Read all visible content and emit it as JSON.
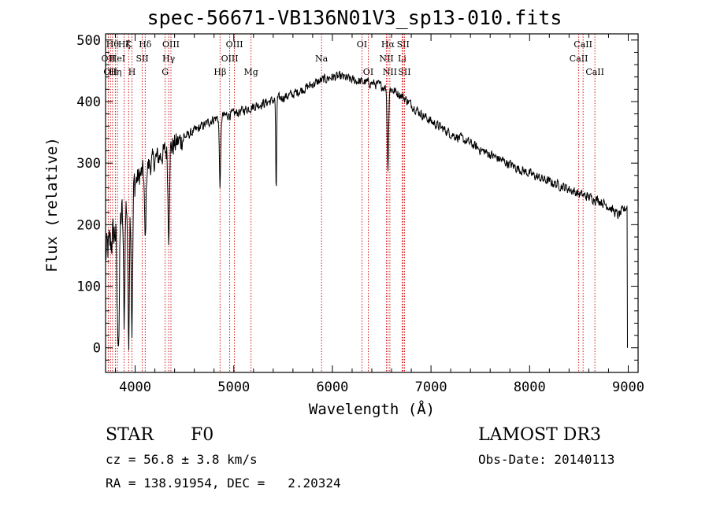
{
  "chart_data": {
    "type": "line",
    "title": "spec-56671-VB136N01V3_sp13-010.fits",
    "xlabel": "Wavelength (Å)",
    "ylabel": "Flux (relative)",
    "xlim": [
      3700,
      9100
    ],
    "ylim": [
      -40,
      510
    ],
    "x_ticks": [
      4000,
      5000,
      6000,
      7000,
      8000,
      9000
    ],
    "y_ticks": [
      0,
      100,
      200,
      300,
      400,
      500
    ],
    "continuum": {
      "x": [
        3700,
        3800,
        3900,
        4000,
        4100,
        4200,
        4300,
        4400,
        4500,
        4600,
        4700,
        4800,
        4900,
        5000,
        5100,
        5200,
        5300,
        5400,
        5500,
        5600,
        5700,
        5800,
        5900,
        6000,
        6100,
        6200,
        6300,
        6400,
        6500,
        6600,
        6700,
        6800,
        6900,
        7000,
        7100,
        7200,
        7300,
        7400,
        7500,
        7600,
        7700,
        7800,
        7900,
        8000,
        8100,
        8200,
        8300,
        8400,
        8500,
        8600,
        8700,
        8800,
        8900,
        8990
      ],
      "y": [
        150,
        190,
        230,
        270,
        290,
        305,
        318,
        330,
        342,
        352,
        362,
        372,
        377,
        380,
        386,
        392,
        397,
        402,
        407,
        412,
        420,
        428,
        435,
        440,
        440,
        435,
        432,
        430,
        425,
        420,
        410,
        395,
        380,
        368,
        358,
        348,
        340,
        332,
        322,
        314,
        306,
        298,
        290,
        283,
        276,
        270,
        264,
        258,
        250,
        245,
        240,
        230,
        215,
        230
      ]
    },
    "absorption_lines": [
      {
        "x": 3820,
        "depth": 140
      },
      {
        "x": 3835,
        "depth": 160
      },
      {
        "x": 3889,
        "depth": 180
      },
      {
        "x": 3934,
        "depth": 230
      },
      {
        "x": 3968,
        "depth": 220
      },
      {
        "x": 4102,
        "depth": 120
      },
      {
        "x": 4340,
        "depth": 140
      },
      {
        "x": 4861,
        "depth": 110
      },
      {
        "x": 5430,
        "depth": 160
      },
      {
        "x": 6563,
        "depth": 130
      }
    ],
    "line_markers": [
      {
        "x": 3727,
        "label": "OII",
        "row": 2
      },
      {
        "x": 3750,
        "label": "OII",
        "row": 3
      },
      {
        "x": 3771,
        "label": "Hθ",
        "row": 1
      },
      {
        "x": 3799,
        "label": "Hη",
        "row": 3
      },
      {
        "x": 3820,
        "label": "HeI",
        "row": 2
      },
      {
        "x": 3889,
        "label": "Hζ",
        "row": 1
      },
      {
        "x": 3934,
        "label": "K",
        "row": 1
      },
      {
        "x": 3968,
        "label": "H",
        "row": 3
      },
      {
        "x": 4072,
        "label": "SII",
        "row": 2
      },
      {
        "x": 4102,
        "label": "Hδ",
        "row": 1
      },
      {
        "x": 4304,
        "label": "G",
        "row": 3
      },
      {
        "x": 4340,
        "label": "Hγ",
        "row": 2
      },
      {
        "x": 4363,
        "label": "OIII",
        "row": 1
      },
      {
        "x": 4861,
        "label": "Hβ",
        "row": 3
      },
      {
        "x": 4959,
        "label": "OIII",
        "row": 2
      },
      {
        "x": 5007,
        "label": "OIII",
        "row": 1
      },
      {
        "x": 5175,
        "label": "Mg",
        "row": 3
      },
      {
        "x": 5890,
        "label": "Na",
        "row": 2
      },
      {
        "x": 6300,
        "label": "OI",
        "row": 1
      },
      {
        "x": 6364,
        "label": "OI",
        "row": 3
      },
      {
        "x": 6548,
        "label": "NII",
        "row": 2
      },
      {
        "x": 6563,
        "label": "Hα",
        "row": 1
      },
      {
        "x": 6583,
        "label": "NII",
        "row": 3
      },
      {
        "x": 6707,
        "label": "Li",
        "row": 2
      },
      {
        "x": 6717,
        "label": "SII",
        "row": 1
      },
      {
        "x": 6731,
        "label": "SII",
        "row": 3
      },
      {
        "x": 8498,
        "label": "CaII",
        "row": 2
      },
      {
        "x": 8542,
        "label": "CaII",
        "row": 1
      },
      {
        "x": 8662,
        "label": "CaII",
        "row": 3
      }
    ]
  },
  "info": {
    "class": "STAR",
    "subclass": "F0",
    "survey": "LAMOST DR3",
    "redshift": "cz = 56.8 ± 3.8 km/s",
    "obs_date": "Obs-Date: 20140113",
    "coords": "RA = 138.91954, DEC =   2.20324"
  }
}
